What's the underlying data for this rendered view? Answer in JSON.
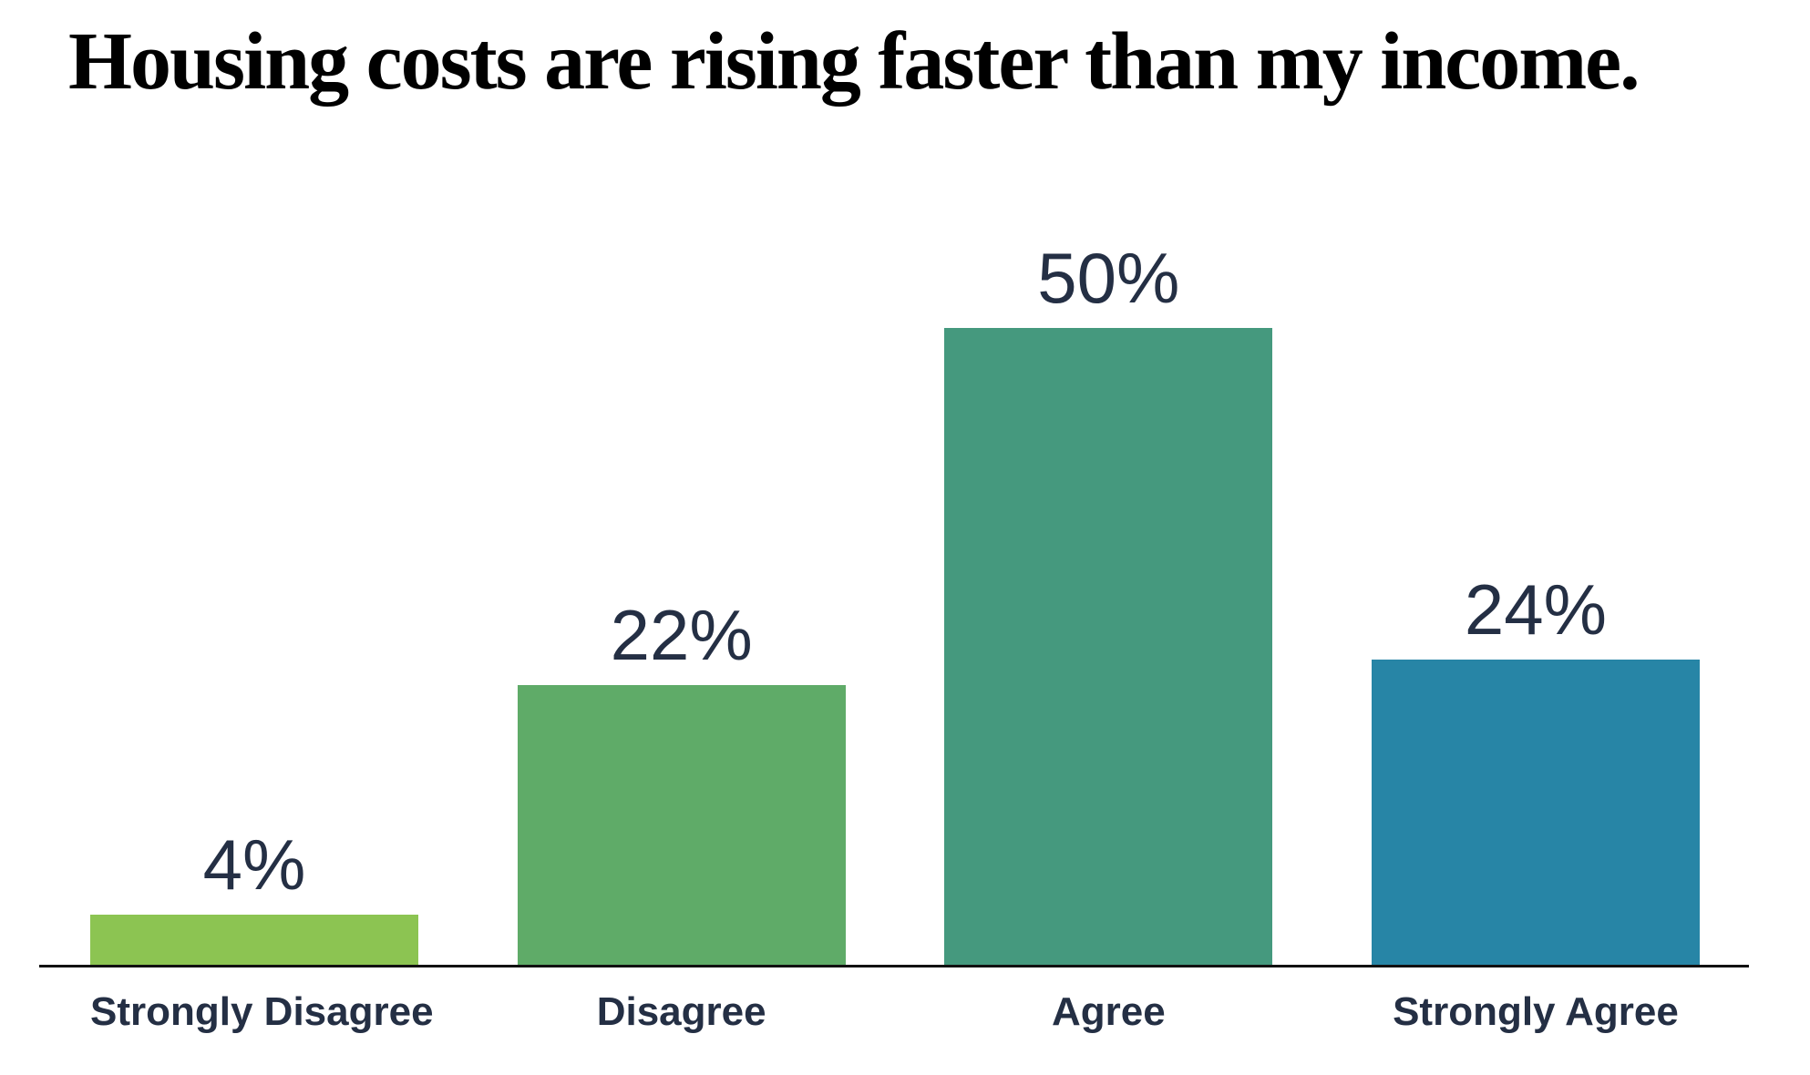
{
  "chart_data": {
    "type": "bar",
    "title": "Housing costs are rising faster than my income.",
    "categories": [
      "Strongly Disagree",
      "Disagree",
      "Agree",
      "Strongly Agree"
    ],
    "values": [
      4,
      22,
      50,
      24
    ],
    "value_labels": [
      "4%",
      "22%",
      "50%",
      "24%"
    ],
    "bar_colors": [
      "#8CC452",
      "#5FAB68",
      "#45997E",
      "#2785A6"
    ],
    "text_color": "#242F44",
    "title_color": "#000000",
    "axis_color": "#111111",
    "xlabel": "",
    "ylabel": "",
    "ylim": [
      0,
      50
    ],
    "grid": false,
    "legend": false
  }
}
